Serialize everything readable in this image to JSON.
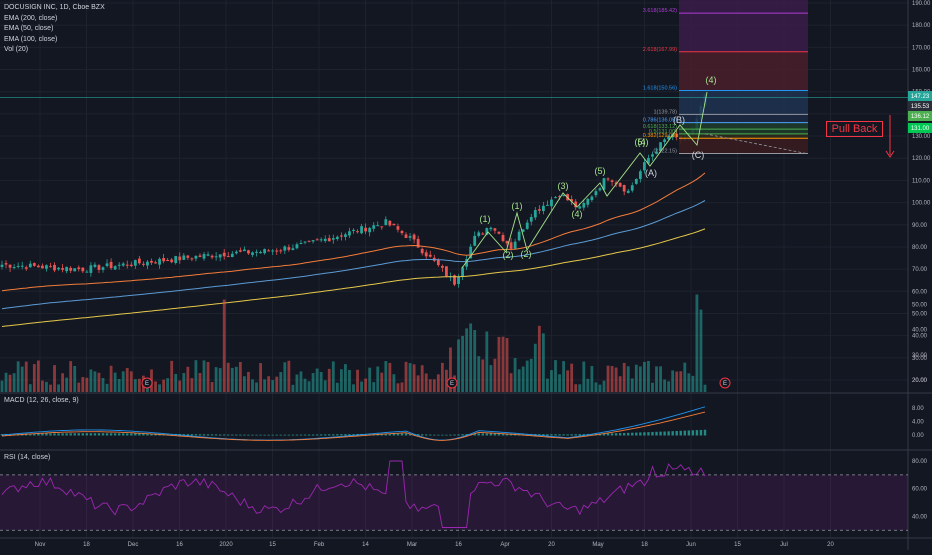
{
  "legend": {
    "symbol": "DOCUSIGN INC, 1D, Cboe BZX",
    "ema200": "EMA (200, close)",
    "ema50": "EMA (50, close)",
    "ema100": "EMA (100, close)",
    "vol": "Vol (20)"
  },
  "macd_label": "MACD (12, 26, close, 9)",
  "rsi_label": "RSI (14, close)",
  "pullback": "Pull Back",
  "colors": {
    "background": "#131722",
    "up": "#26a69a",
    "down": "#ef5350",
    "ema200": "#e6c84a",
    "ema50": "#f57c3a",
    "ema100": "#5b9bd5",
    "wave": "#a5e38a",
    "rsi": "#9c27b0"
  },
  "chart_data": [
    {
      "type": "candlestick",
      "title": "DOCUSIGN INC, 1D, Cboe BZX",
      "ylim": [
        50,
        190
      ],
      "price_ticks": [
        "190.00",
        "180.00",
        "170.00",
        "160.00",
        "150.00",
        "140.00",
        "130.00",
        "120.00",
        "110.00",
        "100.00",
        "90.00",
        "80.00",
        "70.00",
        "60.00",
        "50.00",
        "40.00",
        "30.00",
        "20.00"
      ],
      "x_ticks": [
        "Nov",
        "18",
        "Dec",
        "16",
        "2020",
        "15",
        "Feb",
        "14",
        "Mar",
        "16",
        "Apr",
        "20",
        "May",
        "18",
        "Jun",
        "15",
        "Jul",
        "20"
      ],
      "price_badges": [
        {
          "text": "147.23",
          "color": "#26a69a"
        },
        {
          "text": "135.53",
          "color": "#2a2e39"
        },
        {
          "text": "136.12",
          "color": "#4caf50"
        },
        {
          "text": "131.00",
          "color": "#00c853"
        }
      ],
      "fib_levels": [
        {
          "label": "3.618(185.42)",
          "value": 185.42,
          "color": "#b13dd6"
        },
        {
          "label": "2.618(167.99)",
          "value": 167.99,
          "color": "#f23645"
        },
        {
          "label": "1.618(150.56)",
          "value": 150.56,
          "color": "#2196f3"
        },
        {
          "label": "1(139.78)",
          "value": 139.78,
          "color": "#9598a1"
        },
        {
          "label": "0.786(136.05)",
          "value": 136.05,
          "color": "#4ca3ff"
        },
        {
          "label": "0.618(133.12)",
          "value": 133.12,
          "color": "#4caf50"
        },
        {
          "label": "0.5(131.00)",
          "value": 131.0,
          "color": "#4caf50"
        },
        {
          "label": "0.382(129.03)",
          "value": 129.03,
          "color": "#ff9800"
        },
        {
          "label": "0(122.15)",
          "value": 122.15,
          "color": "#9598a1"
        }
      ],
      "wave_labels": [
        "(1)",
        "(2)",
        "(1)",
        "(2)",
        "(3)",
        "(4)",
        "(5)",
        "(4)",
        "(A)",
        "(B)",
        "(C)",
        "(4)",
        "(5)"
      ],
      "series": [
        {
          "name": "EMA (200, close)",
          "color": "#e6c84a"
        },
        {
          "name": "EMA (50, close)",
          "color": "#f57c3a"
        },
        {
          "name": "EMA (100, close)",
          "color": "#5b9bd5"
        }
      ],
      "volume_ticks": [
        "50.00",
        "40.00",
        "30.00",
        "20.00"
      ],
      "earnings_markers": [
        "E",
        "E",
        "E"
      ]
    },
    {
      "type": "bar",
      "title": "MACD (12, 26, close, 9)",
      "ticks": [
        "8.00",
        "4.00",
        "0.00"
      ],
      "ylim": [
        -4,
        10
      ]
    },
    {
      "type": "line",
      "title": "RSI (14, close)",
      "ticks": [
        "80.00",
        "60.00",
        "40.00"
      ],
      "ylim": [
        25,
        90
      ]
    }
  ]
}
